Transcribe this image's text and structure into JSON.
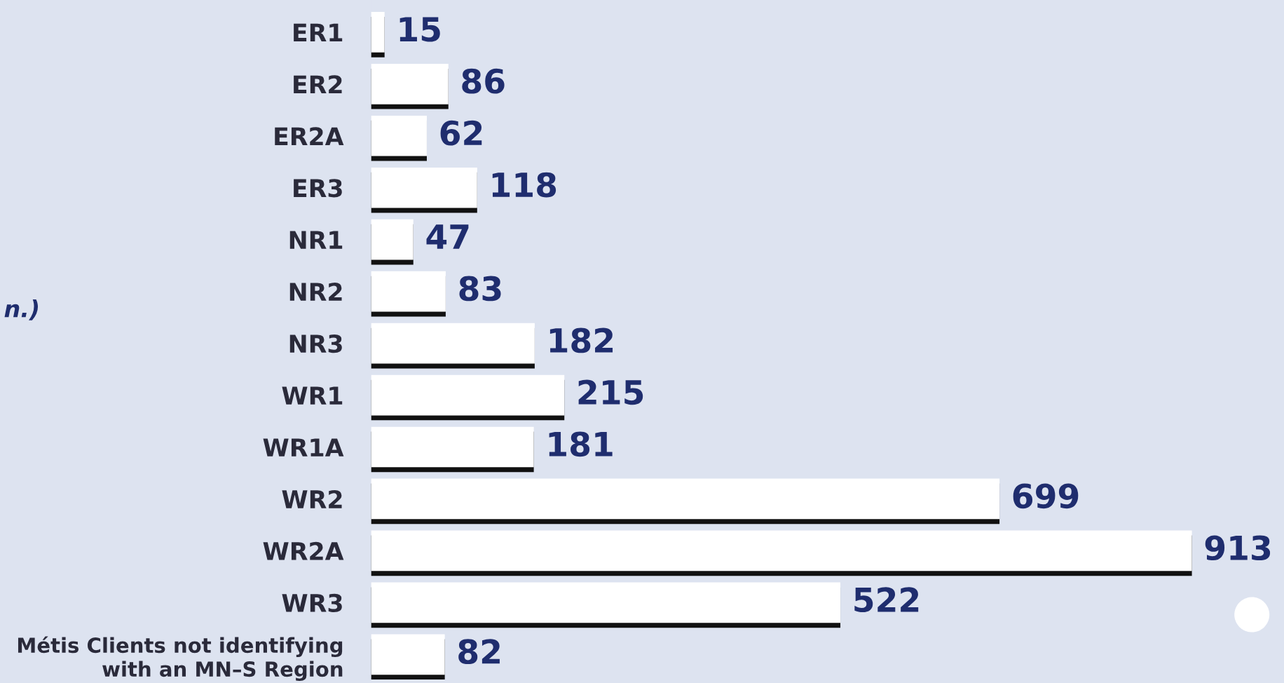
{
  "chart_data": {
    "type": "bar",
    "orientation": "horizontal",
    "categories": [
      "ER1",
      "ER2",
      "ER2A",
      "ER3",
      "NR1",
      "NR2",
      "NR3",
      "WR1",
      "WR1A",
      "WR2",
      "WR2A",
      "WR3",
      "Métis Clients not identifying\nwith an MN–S Region"
    ],
    "values": [
      15,
      86,
      62,
      118,
      47,
      83,
      182,
      215,
      181,
      699,
      913,
      522,
      82
    ],
    "color": "#ffffff",
    "data_labels": true,
    "annotations": [
      "n.)"
    ],
    "grid": false,
    "legend": false
  }
}
